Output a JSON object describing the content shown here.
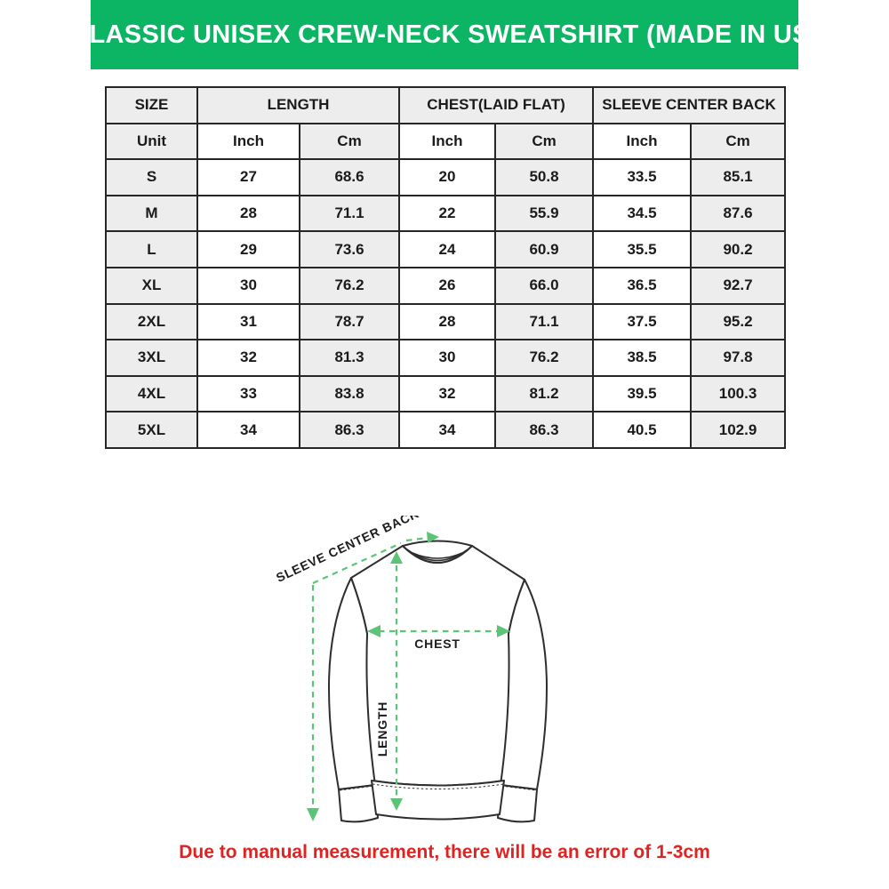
{
  "banner": {
    "title": "CLASSIC UNISEX CREW-NECK SWEATSHIRT (MADE IN US)"
  },
  "colors": {
    "banner_green": "#0cb564",
    "measure_green": "#5bc476",
    "note_red": "#de2323",
    "cell_gray": "#ededed",
    "border_dark": "#262626",
    "text_dark": "#1b1b1b"
  },
  "size_table": {
    "column_groups": [
      {
        "label": "SIZE",
        "span": 1
      },
      {
        "label": "LENGTH",
        "span": 2
      },
      {
        "label": "CHEST(LAID FLAT)",
        "span": 2
      },
      {
        "label": "SLEEVE CENTER BACK",
        "span": 2
      }
    ],
    "unit_row": [
      "Unit",
      "Inch",
      "Cm",
      "Inch",
      "Cm",
      "Inch",
      "Cm"
    ],
    "rows": [
      [
        "S",
        "27",
        "68.6",
        "20",
        "50.8",
        "33.5",
        "85.1"
      ],
      [
        "M",
        "28",
        "71.1",
        "22",
        "55.9",
        "34.5",
        "87.6"
      ],
      [
        "L",
        "29",
        "73.6",
        "24",
        "60.9",
        "35.5",
        "90.2"
      ],
      [
        "XL",
        "30",
        "76.2",
        "26",
        "66.0",
        "36.5",
        "92.7"
      ],
      [
        "2XL",
        "31",
        "78.7",
        "28",
        "71.1",
        "37.5",
        "95.2"
      ],
      [
        "3XL",
        "32",
        "81.3",
        "30",
        "76.2",
        "38.5",
        "97.8"
      ],
      [
        "4XL",
        "33",
        "83.8",
        "32",
        "81.2",
        "39.5",
        "100.3"
      ],
      [
        "5XL",
        "34",
        "86.3",
        "34",
        "86.3",
        "40.5",
        "102.9"
      ]
    ]
  },
  "diagram": {
    "sleeve_label": "SLEEVE CENTER BACK",
    "chest_label": "CHEST",
    "length_label": "LENGTH"
  },
  "footnote": {
    "text": "Due to manual measurement, there will be an error of 1-3cm"
  }
}
